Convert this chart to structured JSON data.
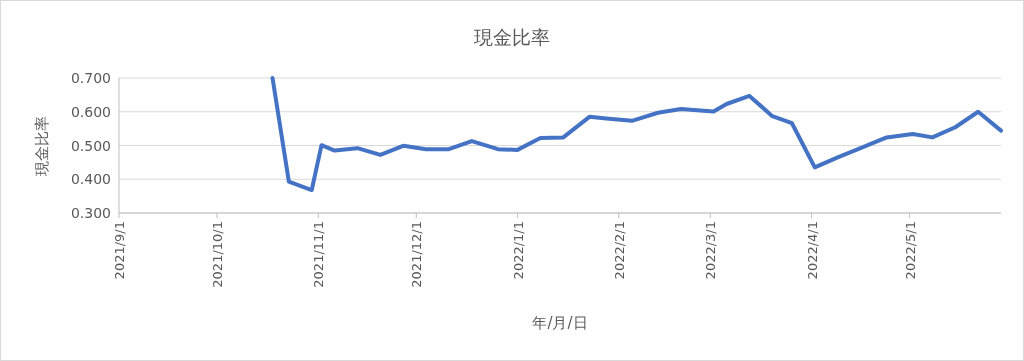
{
  "chart_data": {
    "type": "line",
    "title": "現金比率",
    "xlabel": "年/月/日",
    "ylabel": "現金比率",
    "x": [
      "2021-10-18",
      "2021-10-23",
      "2021-10-30",
      "2021-11-02",
      "2021-11-06",
      "2021-11-13",
      "2021-11-20",
      "2021-11-27",
      "2021-12-04",
      "2021-12-11",
      "2021-12-18",
      "2021-12-26",
      "2022-01-01",
      "2022-01-08",
      "2022-01-15",
      "2022-01-23",
      "2022-01-29",
      "2022-02-05",
      "2022-02-13",
      "2022-02-20",
      "2022-03-02",
      "2022-03-06",
      "2022-03-13",
      "2022-03-20",
      "2022-03-26",
      "2022-04-02",
      "2022-04-09",
      "2022-04-16",
      "2022-04-24",
      "2022-05-02",
      "2022-05-08",
      "2022-05-15",
      "2022-05-22",
      "2022-05-29"
    ],
    "series": [
      {
        "color": "#4472c4",
        "values": [
          0.7,
          0.393,
          0.368,
          0.501,
          0.485,
          0.492,
          0.472,
          0.499,
          0.489,
          0.489,
          0.513,
          0.489,
          0.487,
          0.522,
          0.524,
          0.585,
          0.579,
          0.573,
          0.597,
          0.608,
          0.601,
          0.623,
          0.647,
          0.587,
          0.566,
          0.435,
          0.465,
          0.492,
          0.524,
          0.534,
          0.524,
          0.554,
          0.6,
          0.544
        ]
      }
    ],
    "xlim": [
      "2021-09-01",
      "2022-05-29"
    ],
    "xticks": [
      {
        "value": "2021-09-01",
        "label": "2021/9/1"
      },
      {
        "value": "2021-10-01",
        "label": "2021/10/1"
      },
      {
        "value": "2021-11-01",
        "label": "2021/11/1"
      },
      {
        "value": "2021-12-01",
        "label": "2021/12/1"
      },
      {
        "value": "2022-01-01",
        "label": "2022/1/1"
      },
      {
        "value": "2022-02-01",
        "label": "2022/2/1"
      },
      {
        "value": "2022-03-01",
        "label": "2022/3/1"
      },
      {
        "value": "2022-04-01",
        "label": "2022/4/1"
      },
      {
        "value": "2022-05-01",
        "label": "2022/5/1"
      }
    ],
    "ylim": [
      0.3,
      0.7
    ],
    "yticks": [
      {
        "value": 0.3,
        "label": "0.300"
      },
      {
        "value": 0.4,
        "label": "0.400"
      },
      {
        "value": 0.5,
        "label": "0.500"
      },
      {
        "value": 0.6,
        "label": "0.600"
      },
      {
        "value": 0.7,
        "label": "0.700"
      }
    ],
    "grid": "y",
    "line_style": "solid"
  }
}
